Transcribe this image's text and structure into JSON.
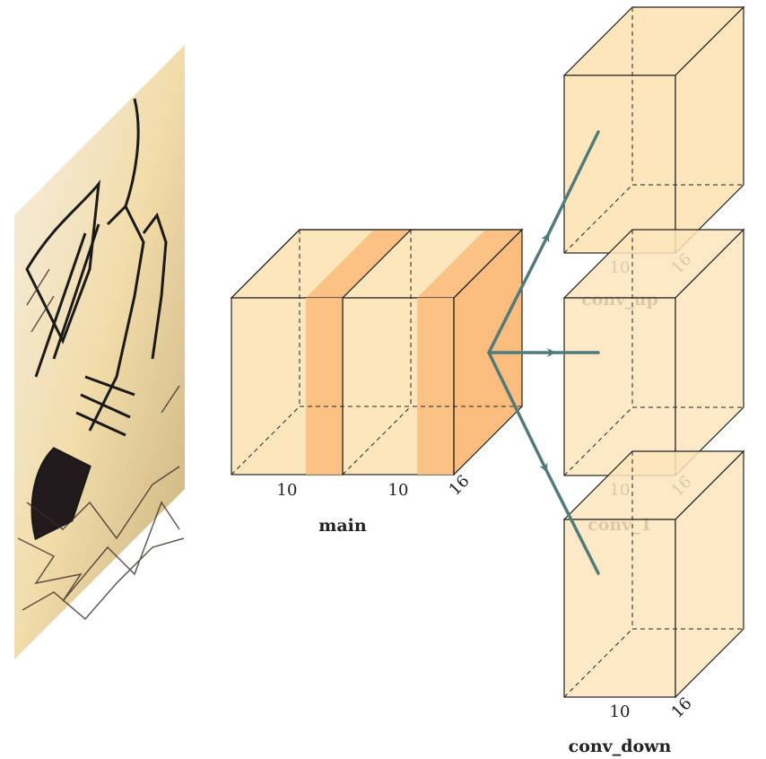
{
  "input_image": {
    "description": "stylized sketch of a hand"
  },
  "blocks": {
    "main": {
      "label": "main",
      "unit1": {
        "width": "10"
      },
      "unit2": {
        "width": "10",
        "depth": "16"
      }
    },
    "conv_up": {
      "label": "conv_up",
      "width": "10",
      "depth": "16"
    },
    "conv_1": {
      "label": "conv_1",
      "width": "10",
      "depth": "16"
    },
    "conv_down": {
      "label": "conv_down",
      "width": "10",
      "depth": "16"
    }
  },
  "colors": {
    "cube_fill": "#fde5bc",
    "conv_band": "#fbbd7e",
    "edge": "#222222",
    "arrow": "#4f7b7a"
  }
}
